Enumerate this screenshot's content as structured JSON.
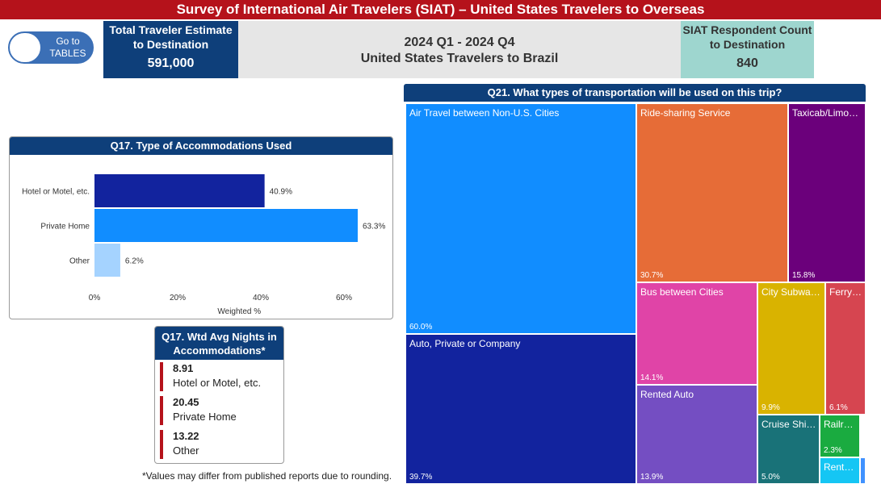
{
  "banner": {
    "title": "Survey of International Air Travelers (SIAT)  – United States Travelers  to Overseas"
  },
  "nav": {
    "goto_label": "Go to TABLES"
  },
  "cards": {
    "total_title": "Total Traveler Estimate to Destination",
    "total_value": "591,000",
    "period_line1": "2024 Q1 - 2024 Q4",
    "period_line2": "United States Travelers to Brazil",
    "respondent_title": "SIAT Respondent Count to Destination",
    "respondent_value": "840"
  },
  "q17": {
    "title": "Q17. Type of Accommodations Used"
  },
  "nights": {
    "title": "Q17. Wtd Avg Nights in Accommodations*",
    "items": [
      {
        "value": "8.91",
        "label": "Hotel or Motel, etc."
      },
      {
        "value": "20.45",
        "label": "Private Home"
      },
      {
        "value": "13.22",
        "label": "Other"
      }
    ]
  },
  "footnote": "*Values may differ from published reports due to rounding.",
  "q21": {
    "title": "Q21. What types of transportation will be used on this trip?",
    "tiles": [
      {
        "label": "Air Travel between Non-U.S. Cities",
        "pct": "60.0%",
        "value": 60.0,
        "color": "#118dff"
      },
      {
        "label": "Ride-sharing Service",
        "pct": "30.7%",
        "value": 30.7,
        "color": "#e66c37"
      },
      {
        "label": "Taxicab/Limousine",
        "pct": "15.8%",
        "value": 15.8,
        "color": "#6b007b"
      },
      {
        "label": "Auto, Private or Company",
        "pct": "39.7%",
        "value": 39.7,
        "color": "#12239e"
      },
      {
        "label": "Bus between Cities",
        "pct": "14.1%",
        "value": 14.1,
        "color": "#e044a7"
      },
      {
        "label": "City Subway/Tram",
        "pct": "9.9%",
        "value": 9.9,
        "color": "#d9b300"
      },
      {
        "label": "Ferry/Boat",
        "pct": "6.1%",
        "value": 6.1,
        "color": "#d64550"
      },
      {
        "label": "Rented Auto",
        "pct": "13.9%",
        "value": 13.9,
        "color": "#744ec2"
      },
      {
        "label": "Cruise Ship/River Boat",
        "pct": "5.0%",
        "value": 5.0,
        "color": "#197278"
      },
      {
        "label": "Railroad between Cities",
        "pct": "2.3%",
        "value": 2.3,
        "color": "#1aab40"
      },
      {
        "label": "Rented Bicycle",
        "pct": "",
        "value": 1.5,
        "color": "#15c6f4"
      },
      {
        "label": "",
        "pct": "",
        "value": 0.5,
        "color": "#4092ff"
      }
    ]
  },
  "chart_data": {
    "type": "bar",
    "orientation": "horizontal",
    "title": "Q17. Type of Accommodations Used",
    "categories": [
      "Hotel or Motel, etc.",
      "Private Home",
      "Other"
    ],
    "values": [
      40.9,
      63.3,
      6.2
    ],
    "value_labels": [
      "40.9%",
      "63.3%",
      "6.2%"
    ],
    "colors": [
      "#12239e",
      "#118dff",
      "#a5d3ff"
    ],
    "xlabel": "Weighted %",
    "xlim": [
      0,
      70
    ],
    "xticks": [
      0,
      20,
      40,
      60
    ],
    "xtick_labels": [
      "0%",
      "20%",
      "40%",
      "60%"
    ]
  }
}
